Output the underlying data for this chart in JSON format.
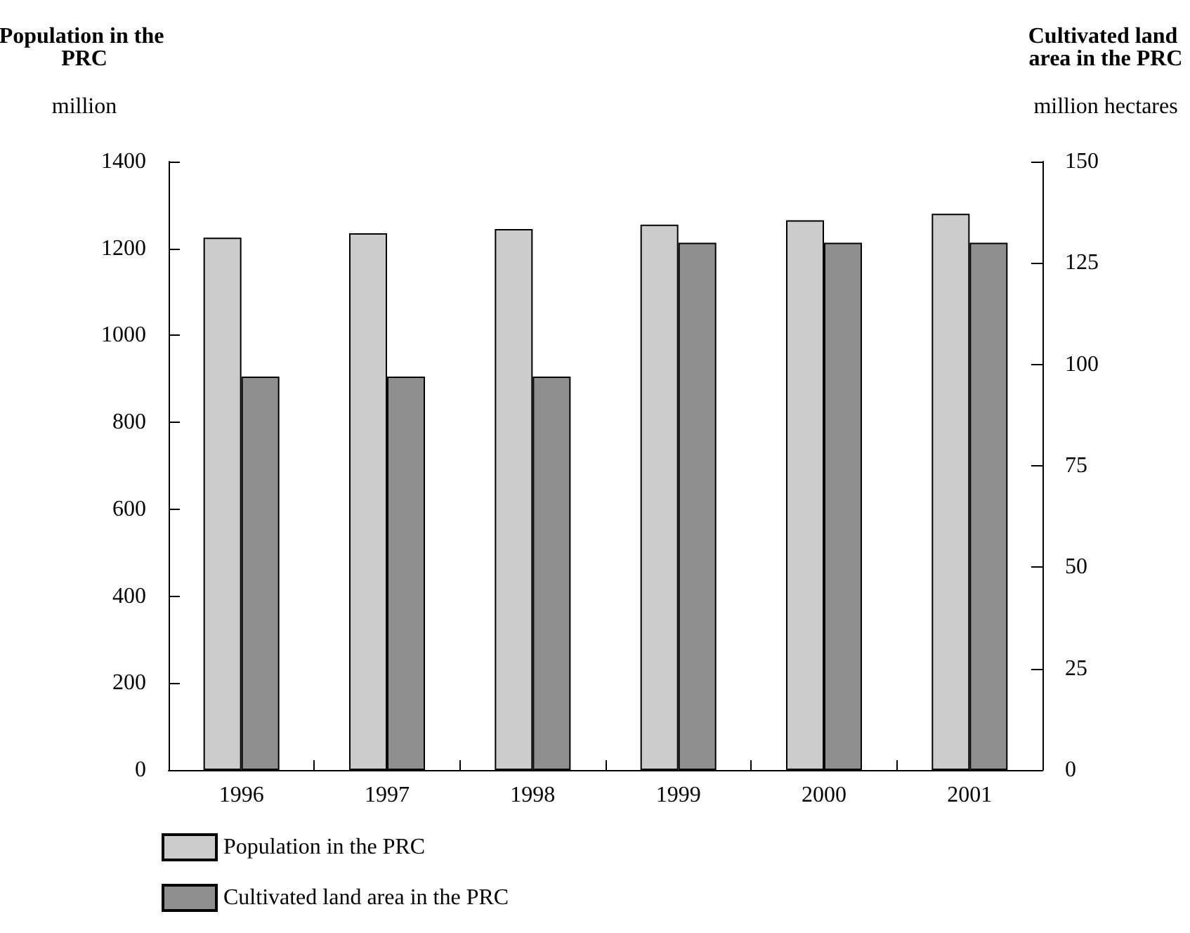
{
  "chart_data": {
    "type": "bar",
    "ylabel": "Population in the PRC",
    "y2label": "Cultivated land area in the PRC",
    "annotations": [
      "million",
      "million hectares"
    ],
    "categories": [
      "1996",
      "1997",
      "1998",
      "1999",
      "2000",
      "2001"
    ],
    "series": [
      {
        "name": "Population in the PRC",
        "color": "#cccccc",
        "values": [
          1225,
          1235,
          1245,
          1255,
          1265,
          1280
        ]
      },
      {
        "name": "Cultivated land area in the PRC",
        "color": "#8f8f8f",
        "axis": "y2",
        "values": [
          97,
          97,
          97,
          130,
          130,
          130
        ]
      }
    ],
    "ylim": [
      0,
      1400
    ],
    "yticks": [
      0,
      200,
      400,
      600,
      800,
      1000,
      1200,
      1400
    ],
    "y2lim": [
      0,
      150
    ],
    "y2ticks": [
      0,
      25,
      50,
      75,
      100,
      125,
      150
    ],
    "grid": false,
    "legend": "bottom left"
  }
}
